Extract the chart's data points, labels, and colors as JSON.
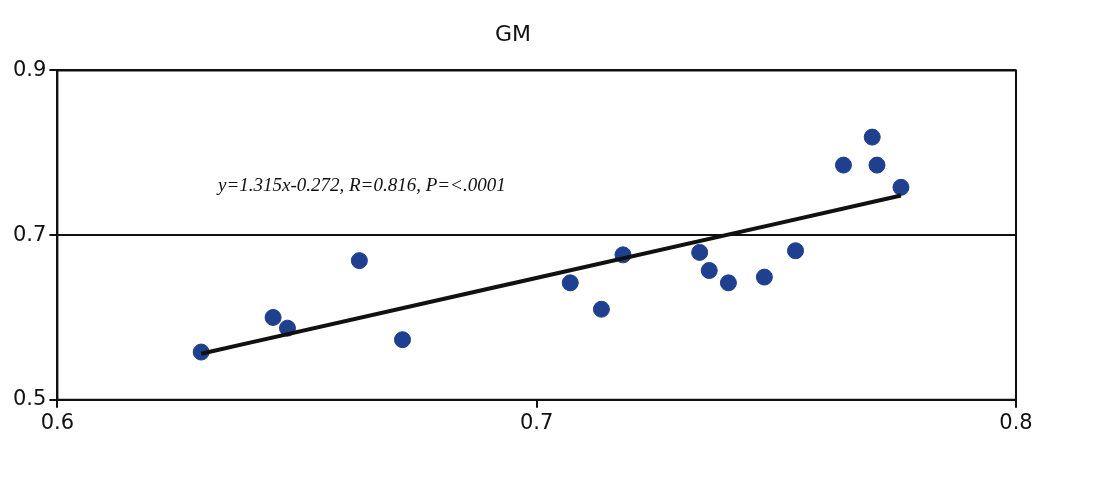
{
  "chart_data": {
    "type": "scatter",
    "title": "GM",
    "xlim": [
      0.6,
      0.8
    ],
    "xticks": [
      0.6,
      0.7,
      0.8
    ],
    "ylim": [
      0.5,
      0.9
    ],
    "yticks": [
      0.5,
      0.7,
      0.9
    ],
    "grid": "y",
    "marker": "circle",
    "series": [
      {
        "type": "scatter",
        "color": "#1f3f8f",
        "x": [
          0.63,
          0.645,
          0.648,
          0.663,
          0.672,
          0.707,
          0.7135,
          0.718,
          0.734,
          0.736,
          0.74,
          0.7475,
          0.754,
          0.764,
          0.77,
          0.771,
          0.776
        ],
        "values": [
          0.558,
          0.6,
          0.587,
          0.669,
          0.573,
          0.642,
          0.61,
          0.676,
          0.679,
          0.657,
          0.642,
          0.649,
          0.681,
          0.785,
          0.819,
          0.785,
          0.758
        ]
      },
      {
        "type": "line",
        "color": "#111111",
        "marker": "none",
        "x": [
          0.63,
          0.776
        ],
        "values": [
          0.556,
          0.748
        ]
      }
    ],
    "annotations": [
      "y=1.315x-0.272, R=0.816, P=<.0001"
    ]
  }
}
